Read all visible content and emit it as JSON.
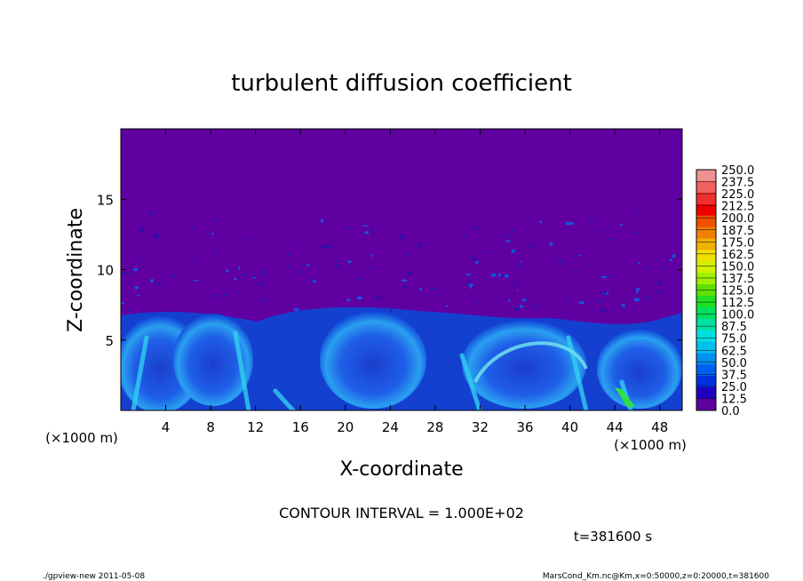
{
  "chart_data": {
    "type": "heatmap",
    "title": "turbulent diffusion coefficient",
    "xlabel": "X-coordinate",
    "ylabel": "Z-coordinate",
    "x_unit": "(×1000 m)",
    "y_unit": "(×1000 m)",
    "xlim": [
      0,
      50
    ],
    "ylim": [
      0,
      20
    ],
    "x_ticks": [
      4,
      8,
      12,
      16,
      20,
      24,
      28,
      32,
      36,
      40,
      44,
      48
    ],
    "y_ticks": [
      5,
      10,
      15
    ],
    "colorbar": {
      "levels": [
        "250.0",
        "237.5",
        "225.0",
        "212.5",
        "200.0",
        "187.5",
        "175.0",
        "162.5",
        "150.0",
        "137.5",
        "125.0",
        "112.5",
        "100.0",
        "87.5",
        "75.0",
        "62.5",
        "50.0",
        "37.5",
        "25.0",
        "12.5",
        "0.0"
      ],
      "colors": [
        "#f09090",
        "#f06060",
        "#f03030",
        "#f00000",
        "#f05000",
        "#f08000",
        "#f0b000",
        "#f0e000",
        "#d0f000",
        "#a0f000",
        "#60e000",
        "#20e020",
        "#00e060",
        "#00e0a0",
        "#00e0e0",
        "#00c0f0",
        "#0090f0",
        "#0060f0",
        "#0030e0",
        "#2000c0",
        "#6000a0"
      ]
    },
    "annotation": "CONTOUR INTERVAL = 1.000E+02",
    "time_label": "t=381600 s"
  },
  "footer": {
    "left": "./gpview-new   2011-05-08",
    "right": "MarsCond_Km.nc@Km,x=0:50000,z=0:20000,t=381600"
  }
}
